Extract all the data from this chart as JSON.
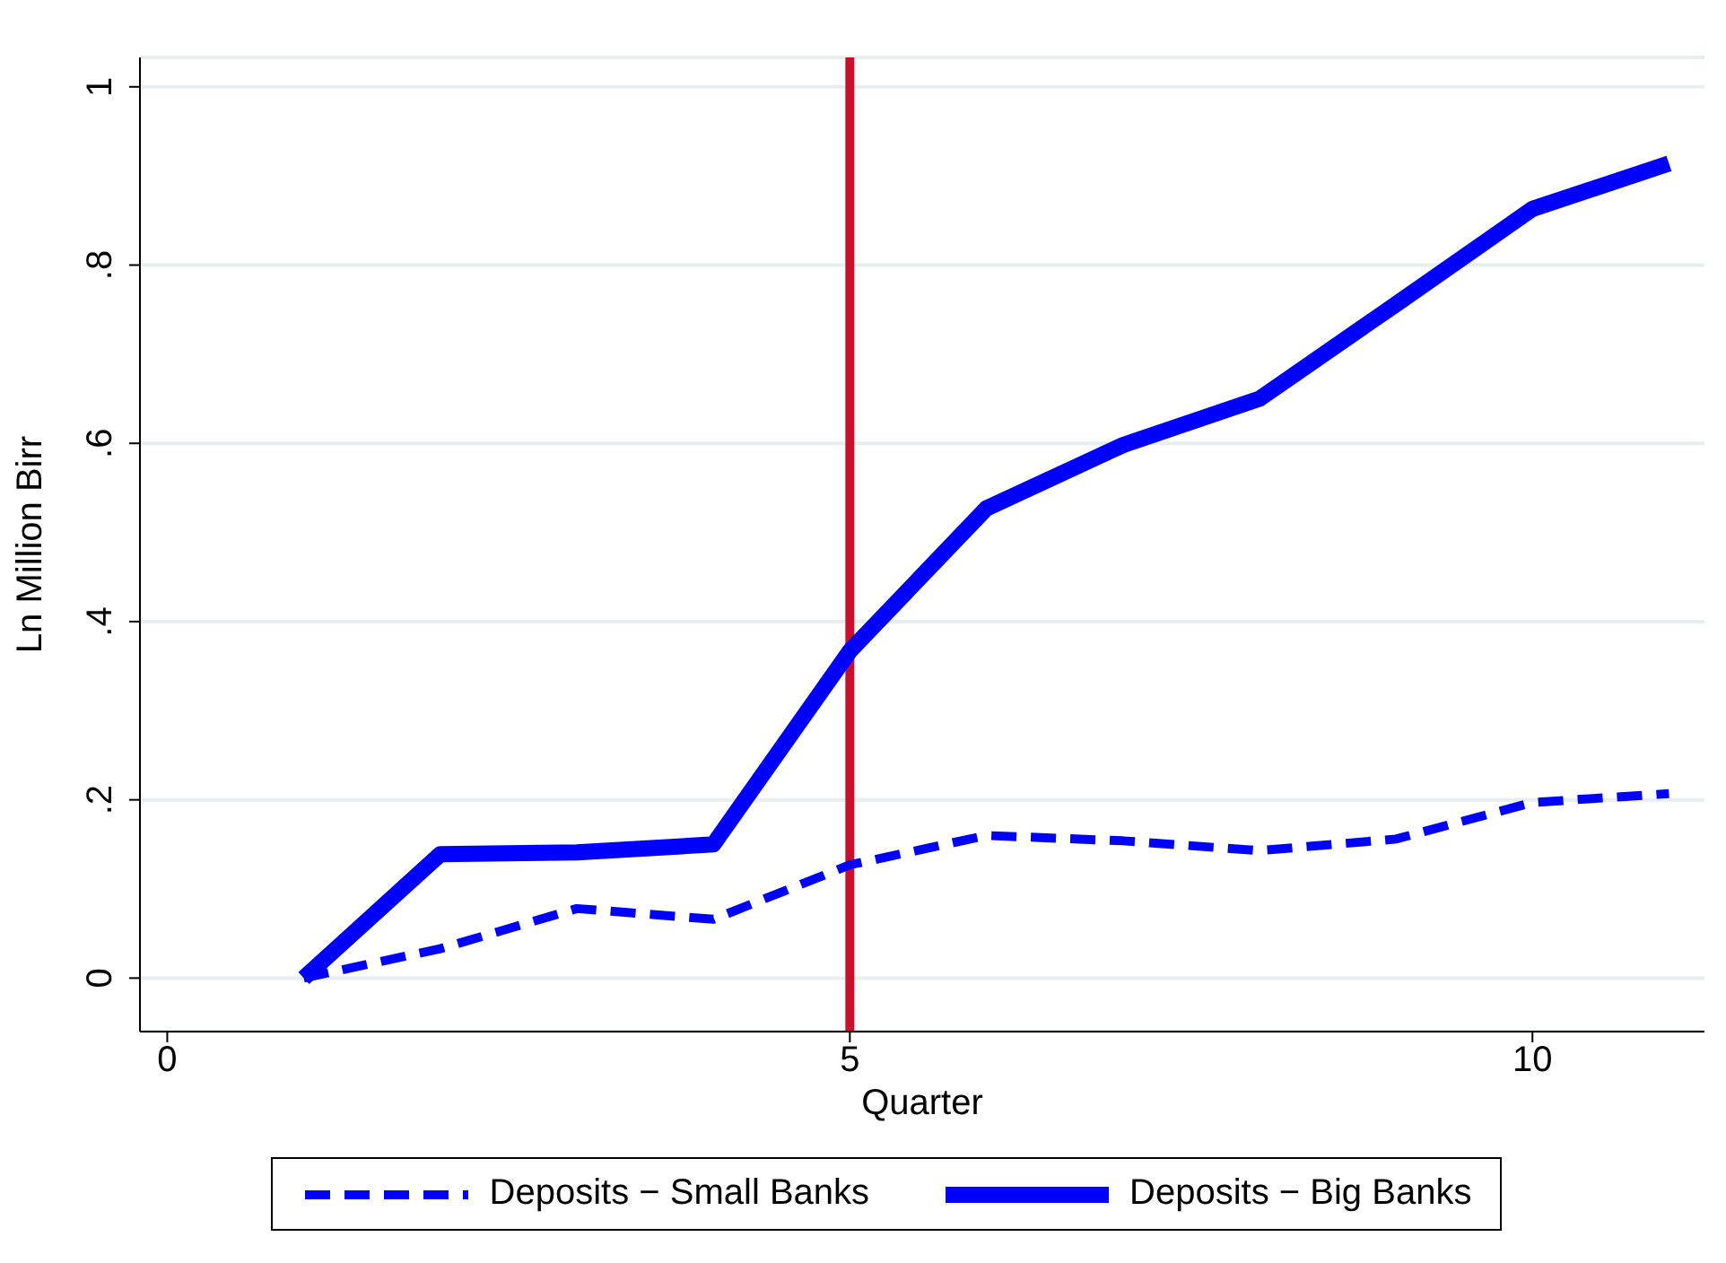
{
  "chart_data": {
    "type": "line",
    "xlabel": "Quarter",
    "ylabel": "Ln Million Birr",
    "x": [
      1,
      2,
      3,
      4,
      5,
      6,
      7,
      8,
      9,
      10,
      11
    ],
    "series": [
      {
        "name": "Deposits − Small Banks",
        "color": "#0000ff",
        "line_style": "dashed",
        "values": [
          0,
          0.033,
          0.078,
          0.066,
          0.127,
          0.16,
          0.154,
          0.143,
          0.156,
          0.197,
          0.207
        ]
      },
      {
        "name": "Deposits − Big Banks",
        "color": "#0000ff",
        "line_style": "solid",
        "values": [
          0,
          0.139,
          0.141,
          0.15,
          0.367,
          0.527,
          0.598,
          0.65,
          0.756,
          0.863,
          0.914
        ]
      }
    ],
    "xlim": [
      -0.2,
      11.26
    ],
    "xticks": [
      0,
      5,
      10
    ],
    "ylim": [
      -0.06,
      1.033
    ],
    "yticks": [
      0,
      {
        "value": 0.2,
        "label": ".2"
      },
      {
        "value": 0.4,
        "label": ".4"
      },
      {
        "value": 0.6,
        "label": ".6"
      },
      {
        "value": 0.8,
        "label": ".8"
      },
      1
    ],
    "ref_lines": [
      {
        "axis": "x",
        "value": 5,
        "color": "#c8102e"
      }
    ],
    "grid": "y",
    "legend": "bottom",
    "marker": "none"
  }
}
